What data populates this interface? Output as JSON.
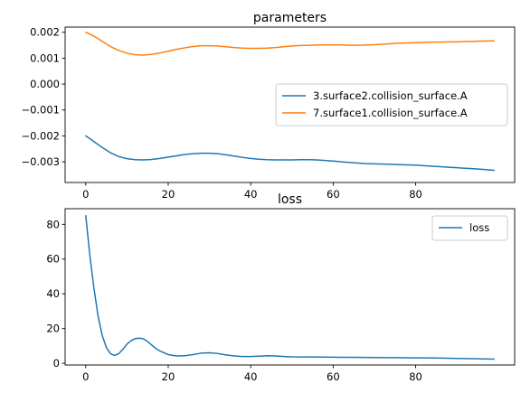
{
  "chart_data": [
    {
      "type": "line",
      "title": "parameters",
      "xlabel": "",
      "ylabel": "",
      "xlim": [
        -5,
        104
      ],
      "ylim": [
        -0.0038,
        0.0022
      ],
      "xticks": [
        0,
        20,
        40,
        60,
        80
      ],
      "yticks": [
        -0.003,
        -0.002,
        -0.001,
        0.0,
        0.001,
        0.002
      ],
      "ytick_labels": [
        "−0.003",
        "−0.002",
        "−0.001",
        "0.000",
        "0.001",
        "0.002"
      ],
      "legend_position": "center-right",
      "series": [
        {
          "name": "3.surface2.collision_surface.A",
          "color": "#1f77b4",
          "x": [
            0,
            2,
            4,
            6,
            8,
            10,
            12,
            14,
            16,
            18,
            20,
            22,
            24,
            26,
            28,
            30,
            32,
            34,
            36,
            38,
            40,
            42,
            44,
            46,
            48,
            50,
            52,
            54,
            56,
            58,
            60,
            62,
            64,
            66,
            68,
            70,
            72,
            74,
            76,
            78,
            80,
            82,
            84,
            86,
            88,
            90,
            92,
            94,
            96,
            99
          ],
          "y": [
            -0.002,
            -0.00222,
            -0.00245,
            -0.00265,
            -0.0028,
            -0.00288,
            -0.00292,
            -0.00293,
            -0.00291,
            -0.00287,
            -0.00282,
            -0.00277,
            -0.00272,
            -0.00269,
            -0.00267,
            -0.00267,
            -0.00269,
            -0.00273,
            -0.00278,
            -0.00283,
            -0.00287,
            -0.0029,
            -0.00292,
            -0.00293,
            -0.00293,
            -0.00293,
            -0.00292,
            -0.00292,
            -0.00293,
            -0.00295,
            -0.00297,
            -0.003,
            -0.00303,
            -0.00305,
            -0.00307,
            -0.00308,
            -0.00309,
            -0.0031,
            -0.00311,
            -0.00312,
            -0.00313,
            -0.00315,
            -0.00317,
            -0.00319,
            -0.00321,
            -0.00323,
            -0.00325,
            -0.00327,
            -0.00329,
            -0.00333
          ]
        },
        {
          "name": "7.surface1.collision_surface.A",
          "color": "#ff7f0e",
          "x": [
            0,
            2,
            4,
            6,
            8,
            10,
            12,
            14,
            16,
            18,
            20,
            22,
            24,
            26,
            28,
            30,
            32,
            34,
            36,
            38,
            40,
            42,
            44,
            46,
            48,
            50,
            52,
            54,
            56,
            58,
            60,
            62,
            64,
            66,
            68,
            70,
            72,
            74,
            76,
            78,
            80,
            82,
            84,
            86,
            88,
            90,
            92,
            94,
            96,
            99
          ],
          "y": [
            0.002,
            0.00185,
            0.00165,
            0.00145,
            0.0013,
            0.00119,
            0.00113,
            0.00112,
            0.00115,
            0.0012,
            0.00127,
            0.00134,
            0.0014,
            0.00145,
            0.00148,
            0.00148,
            0.00147,
            0.00144,
            0.00141,
            0.00139,
            0.00138,
            0.00138,
            0.00139,
            0.00141,
            0.00144,
            0.00147,
            0.00149,
            0.0015,
            0.00151,
            0.00151,
            0.00151,
            0.00151,
            0.0015,
            0.0015,
            0.00151,
            0.00152,
            0.00154,
            0.00156,
            0.00158,
            0.00159,
            0.0016,
            0.00161,
            0.00162,
            0.00162,
            0.00163,
            0.00163,
            0.00164,
            0.00165,
            0.00166,
            0.00167
          ]
        }
      ]
    },
    {
      "type": "line",
      "title": "loss",
      "xlabel": "",
      "ylabel": "",
      "xlim": [
        -5,
        104
      ],
      "ylim": [
        -1,
        89
      ],
      "xticks": [
        0,
        20,
        40,
        60,
        80
      ],
      "yticks": [
        0,
        20,
        40,
        60,
        80
      ],
      "ytick_labels": [
        "0",
        "20",
        "40",
        "60",
        "80"
      ],
      "legend_position": "upper-right",
      "series": [
        {
          "name": "loss",
          "color": "#1f77b4",
          "x": [
            0,
            1,
            2,
            3,
            4,
            5,
            6,
            7,
            8,
            9,
            10,
            11,
            12,
            13,
            14,
            15,
            16,
            17,
            18,
            20,
            22,
            24,
            26,
            28,
            30,
            32,
            34,
            36,
            38,
            40,
            42,
            44,
            46,
            48,
            50,
            55,
            60,
            65,
            70,
            75,
            80,
            85,
            90,
            95,
            99
          ],
          "y": [
            85,
            62,
            43,
            27,
            16,
            9,
            5.5,
            4.5,
            5.5,
            8,
            11,
            13,
            14.2,
            14.5,
            14,
            12.5,
            10.5,
            8.5,
            7,
            5,
            4.2,
            4.3,
            5,
            5.8,
            6,
            5.6,
            4.8,
            4.2,
            3.9,
            3.9,
            4.1,
            4.3,
            4.2,
            3.9,
            3.7,
            3.6,
            3.5,
            3.4,
            3.3,
            3.2,
            3.1,
            3.0,
            2.8,
            2.6,
            2.4
          ]
        }
      ]
    }
  ]
}
